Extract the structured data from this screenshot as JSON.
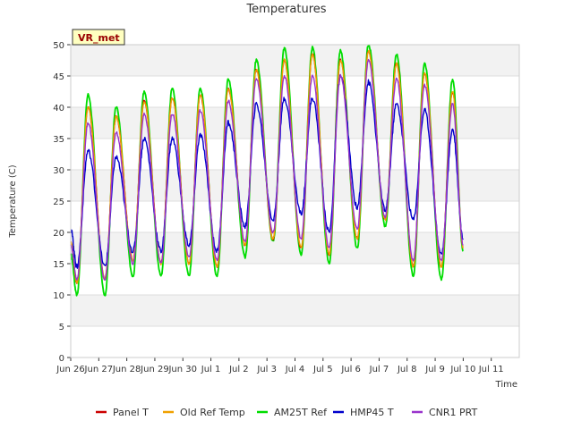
{
  "chart_data": {
    "type": "line",
    "title": "Temperatures",
    "xlabel": "Time",
    "ylabel": "Temperature (C)",
    "badge": "VR_met",
    "ylim": [
      0,
      50
    ],
    "yticks": [
      0,
      5,
      10,
      15,
      20,
      25,
      30,
      35,
      40,
      45,
      50
    ],
    "xlim": [
      0,
      16
    ],
    "xticks": [
      {
        "v": 0,
        "label": "Jun 26"
      },
      {
        "v": 1,
        "label": "Jun 27"
      },
      {
        "v": 2,
        "label": "Jun 28"
      },
      {
        "v": 3,
        "label": "Jun 29"
      },
      {
        "v": 4,
        "label": "Jun 30"
      },
      {
        "v": 5,
        "label": "Jul 1"
      },
      {
        "v": 6,
        "label": "Jul 2"
      },
      {
        "v": 7,
        "label": "Jul 3"
      },
      {
        "v": 8,
        "label": "Jul 4"
      },
      {
        "v": 9,
        "label": "Jul 5"
      },
      {
        "v": 10,
        "label": "Jul 6"
      },
      {
        "v": 11,
        "label": "Jul 7"
      },
      {
        "v": 12,
        "label": "Jul 8"
      },
      {
        "v": 13,
        "label": "Jul 9"
      },
      {
        "v": 14,
        "label": "Jul 10"
      },
      {
        "v": 15,
        "label": "Jul 11"
      }
    ],
    "grid": "horizontal-bands",
    "legend_position": "bottom",
    "daily": {
      "days": [
        "Jun 26",
        "Jun 27",
        "Jun 28",
        "Jun 29",
        "Jun 30",
        "Jul 1",
        "Jul 2",
        "Jul 3",
        "Jul 4",
        "Jul 5",
        "Jul 6",
        "Jul 7",
        "Jul 8",
        "Jul 9",
        "Jul 10"
      ],
      "peak_hour_fraction": 0.62,
      "min_hour_fraction": 0.22
    },
    "series": [
      {
        "name": "Panel T",
        "color": "#cc0000",
        "start": 18.5,
        "end": 17.5,
        "daily_max": [
          40,
          38.5,
          41,
          41.5,
          42,
          43,
          46,
          47.5,
          48.5,
          47.5,
          49,
          47,
          45.5,
          42.5,
          null
        ],
        "daily_min": [
          12,
          12.5,
          15.5,
          15,
          15,
          14.5,
          18,
          19,
          17.5,
          16.5,
          19,
          22,
          14.5,
          14.5,
          null
        ]
      },
      {
        "name": "Old Ref Temp",
        "color": "#f0a000",
        "start": 18.5,
        "end": 17.5,
        "daily_max": [
          40,
          38.5,
          41,
          41.5,
          42,
          43,
          46,
          47.5,
          48.5,
          47.5,
          49,
          47,
          45.5,
          42.5,
          null
        ],
        "daily_min": [
          12,
          12.5,
          15.5,
          15,
          15,
          14.5,
          18,
          19,
          17.5,
          16.5,
          19,
          22,
          14.5,
          14.5,
          null
        ]
      },
      {
        "name": "AM25T Ref",
        "color": "#00dd00",
        "start": 16.5,
        "end": 17.0,
        "daily_max": [
          42,
          40,
          42.5,
          43,
          43,
          44.5,
          47.5,
          49.5,
          49.5,
          49,
          50,
          48.5,
          47,
          44.5,
          null
        ],
        "daily_min": [
          10,
          10,
          13,
          13,
          13,
          13,
          16,
          18.5,
          16.5,
          15,
          17.5,
          21,
          13,
          12.5,
          null
        ]
      },
      {
        "name": "HMP45 T",
        "color": "#0000cc",
        "start": 20.5,
        "end": 19.0,
        "daily_max": [
          33,
          32,
          35,
          35,
          35.5,
          37.5,
          40.5,
          41.5,
          41.5,
          45,
          44,
          40.5,
          39.5,
          36.5,
          null
        ],
        "daily_min": [
          14.5,
          14.5,
          17,
          17,
          18,
          17,
          21,
          22,
          23,
          20,
          24,
          23.5,
          22,
          16.5,
          null
        ]
      },
      {
        "name": "CNR1 PRT",
        "color": "#9933cc",
        "start": 18.0,
        "end": 18.0,
        "daily_max": [
          37.5,
          36,
          39,
          39,
          39.5,
          41,
          44.5,
          45,
          45,
          45,
          47.5,
          44.5,
          43.5,
          40.5,
          null
        ],
        "daily_min": [
          12.5,
          12.5,
          15,
          15,
          16,
          15.5,
          18.5,
          20,
          19,
          17.5,
          20.5,
          22.5,
          15.5,
          15.5,
          null
        ]
      }
    ]
  }
}
